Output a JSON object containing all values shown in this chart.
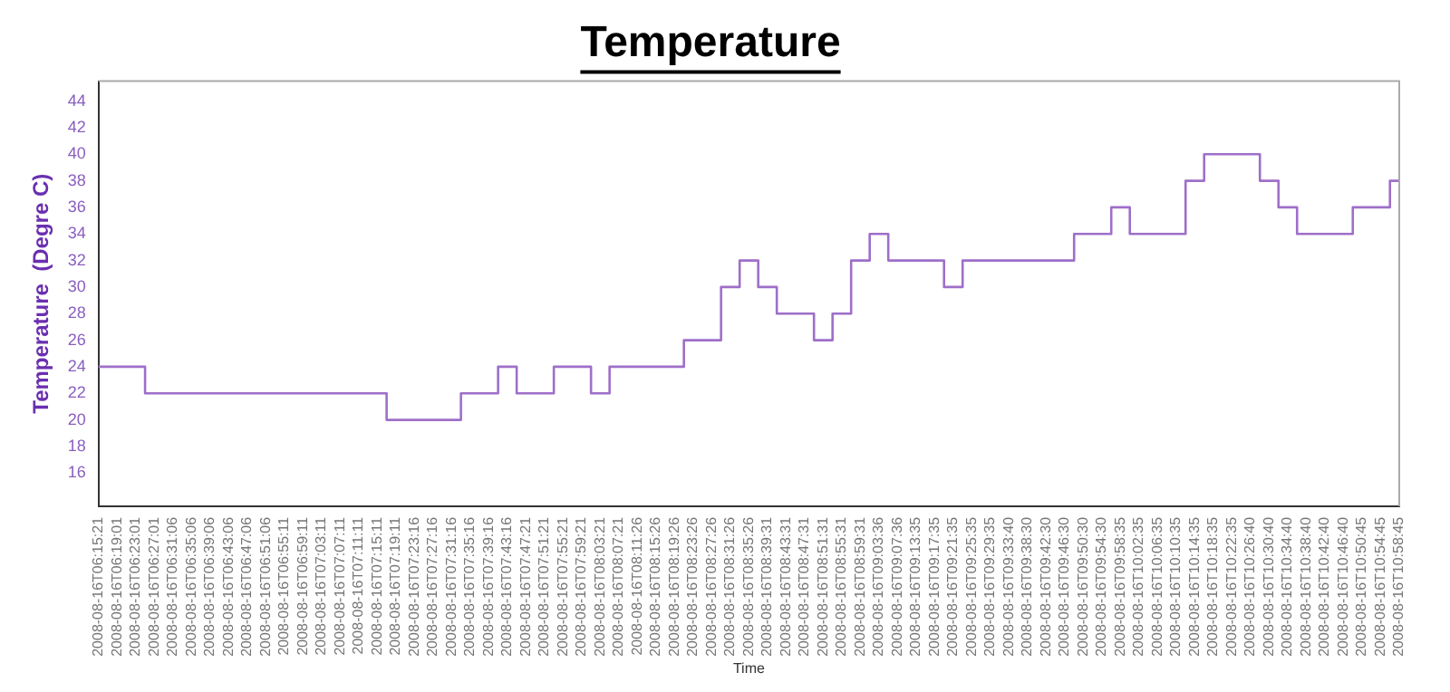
{
  "chart_data": {
    "type": "step",
    "title": "Temperature",
    "xlabel": "Time",
    "ylabel": "Temperature  (Degre C)",
    "categories": [
      "2008-08-16T06:15:21",
      "2008-08-16T06:19:01",
      "2008-08-16T06:23:01",
      "2008-08-16T06:27:01",
      "2008-08-16T06:31:06",
      "2008-08-16T06:35:06",
      "2008-08-16T06:39:06",
      "2008-08-16T06:43:06",
      "2008-08-16T06:47:06",
      "2008-08-16T06:51:06",
      "2008-08-16T06:55:11",
      "2008-08-16T06:59:11",
      "2008-08-16T07:03:11",
      "2008-08-16T07:07:11",
      "2008-08-16T07:11:11",
      "2008-08-16T07:15:11",
      "2008-08-16T07:19:11",
      "2008-08-16T07:23:16",
      "2008-08-16T07:27:16",
      "2008-08-16T07:31:16",
      "2008-08-16T07:35:16",
      "2008-08-16T07:39:16",
      "2008-08-16T07:43:16",
      "2008-08-16T07:47:21",
      "2008-08-16T07:51:21",
      "2008-08-16T07:55:21",
      "2008-08-16T07:59:21",
      "2008-08-16T08:03:21",
      "2008-08-16T08:07:21",
      "2008-08-16T08:11:26",
      "2008-08-16T08:15:26",
      "2008-08-16T08:19:26",
      "2008-08-16T08:23:26",
      "2008-08-16T08:27:26",
      "2008-08-16T08:31:26",
      "2008-08-16T08:35:26",
      "2008-08-16T08:39:31",
      "2008-08-16T08:43:31",
      "2008-08-16T08:47:31",
      "2008-08-16T08:51:31",
      "2008-08-16T08:55:31",
      "2008-08-16T08:59:31",
      "2008-08-16T09:03:36",
      "2008-08-16T09:07:36",
      "2008-08-16T09:13:35",
      "2008-08-16T09:17:35",
      "2008-08-16T09:21:35",
      "2008-08-16T09:25:35",
      "2008-08-16T09:29:35",
      "2008-08-16T09:33:40",
      "2008-08-16T09:38:30",
      "2008-08-16T09:42:30",
      "2008-08-16T09:46:30",
      "2008-08-16T09:50:30",
      "2008-08-16T09:54:30",
      "2008-08-16T09:58:35",
      "2008-08-16T10:02:35",
      "2008-08-16T10:06:35",
      "2008-08-16T10:10:35",
      "2008-08-16T10:14:35",
      "2008-08-16T10:18:35",
      "2008-08-16T10:22:35",
      "2008-08-16T10:26:40",
      "2008-08-16T10:30:40",
      "2008-08-16T10:34:40",
      "2008-08-16T10:38:40",
      "2008-08-16T10:42:40",
      "2008-08-16T10:46:40",
      "2008-08-16T10:50:45",
      "2008-08-16T10:54:45",
      "2008-08-16T10:58:45"
    ],
    "series": [
      {
        "color": "#9e6fc9",
        "values": [
          24,
          24,
          24,
          22,
          22,
          22,
          22,
          22,
          22,
          22,
          22,
          22,
          22,
          22,
          22,
          22,
          20,
          20,
          20,
          20,
          22,
          22,
          24,
          22,
          22,
          24,
          24,
          22,
          24,
          24,
          24,
          24,
          26,
          26,
          30,
          32,
          30,
          28,
          28,
          26,
          28,
          32,
          34,
          32,
          32,
          32,
          30,
          32,
          32,
          32,
          32,
          32,
          32,
          34,
          34,
          36,
          34,
          34,
          34,
          38,
          40,
          40,
          40,
          38,
          36,
          34,
          34,
          34,
          36,
          36,
          38
        ]
      }
    ],
    "ylim": [
      13.5,
      45.5
    ],
    "yticks": [
      16,
      18,
      20,
      22,
      24,
      26,
      28,
      30,
      32,
      34,
      36,
      38,
      40,
      42,
      44
    ],
    "grid": false,
    "legend": false,
    "marker": "none",
    "line_style": "solid"
  }
}
